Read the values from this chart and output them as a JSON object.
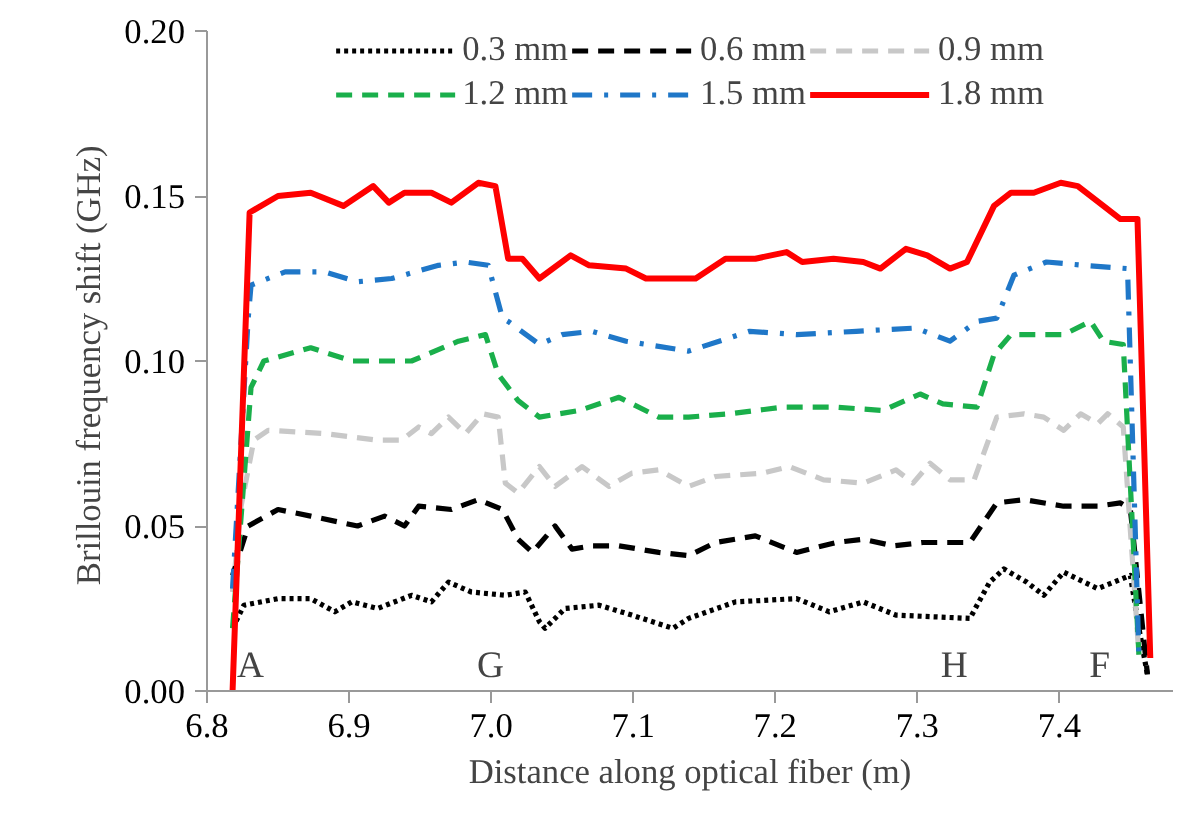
{
  "chart_data": {
    "type": "line",
    "xlabel": "Distance along optical fiber (m)",
    "ylabel": "Brillouin  frequency shift (GHz)",
    "xlim": [
      6.8,
      7.48
    ],
    "xticks": [
      6.8,
      6.9,
      {
        "value": 7.0,
        "label": "7.0"
      },
      7.1,
      7.2,
      7.3,
      7.4
    ],
    "ylim": [
      0,
      0.2
    ],
    "yticks": [
      {
        "value": 0,
        "label": "0.00"
      },
      {
        "value": 0.05,
        "label": "0.05"
      },
      {
        "value": 0.1,
        "label": "0.10"
      },
      {
        "value": 0.15,
        "label": "0.15"
      },
      {
        "value": 0.2,
        "label": "0.20"
      }
    ],
    "legend": "top",
    "grid": false,
    "annotations": [
      "A",
      "G",
      "H",
      "F"
    ],
    "series": [
      {
        "name": "0.3 mm",
        "color": "#000000",
        "line_style": "dotted",
        "x": [
          6.818,
          6.826,
          6.85,
          6.873,
          6.89,
          6.902,
          6.92,
          6.944,
          6.958,
          6.97,
          6.986,
          7.01,
          7.024,
          7.034,
          7.038,
          7.052,
          7.076,
          7.099,
          7.128,
          7.139,
          7.172,
          7.215,
          7.238,
          7.262,
          7.285,
          7.337,
          7.351,
          7.361,
          7.377,
          7.389,
          7.403,
          7.427,
          7.45,
          7.456,
          7.462
        ],
        "values": [
          0.019,
          0.026,
          0.028,
          0.028,
          0.024,
          0.027,
          0.025,
          0.029,
          0.027,
          0.033,
          0.03,
          0.029,
          0.03,
          0.021,
          0.019,
          0.025,
          0.026,
          0.023,
          0.019,
          0.022,
          0.027,
          0.028,
          0.024,
          0.027,
          0.023,
          0.022,
          0.033,
          0.037,
          0.033,
          0.029,
          0.036,
          0.031,
          0.035,
          0.019,
          0.005
        ]
      },
      {
        "name": "0.6 mm",
        "color": "#000000",
        "line_style": "dashed",
        "x": [
          6.818,
          6.829,
          6.85,
          6.873,
          6.906,
          6.925,
          6.939,
          6.949,
          6.972,
          6.991,
          7.008,
          7.019,
          7.029,
          7.045,
          7.057,
          7.071,
          7.09,
          7.118,
          7.139,
          7.158,
          7.186,
          7.215,
          7.243,
          7.262,
          7.283,
          7.304,
          7.337,
          7.356,
          7.375,
          7.403,
          7.427,
          7.443,
          7.45,
          7.462
        ],
        "values": [
          0.035,
          0.05,
          0.055,
          0.053,
          0.05,
          0.053,
          0.05,
          0.056,
          0.055,
          0.058,
          0.055,
          0.046,
          0.042,
          0.05,
          0.043,
          0.044,
          0.044,
          0.042,
          0.041,
          0.045,
          0.047,
          0.042,
          0.045,
          0.046,
          0.044,
          0.045,
          0.045,
          0.057,
          0.058,
          0.056,
          0.056,
          0.057,
          0.055,
          0.005
        ]
      },
      {
        "name": "0.9 mm",
        "color": "#c8c8c8",
        "line_style": "dashed",
        "x": [
          6.818,
          6.824,
          6.833,
          6.843,
          6.883,
          6.92,
          6.937,
          6.949,
          6.958,
          6.97,
          6.982,
          6.994,
          7.005,
          7.01,
          7.019,
          7.034,
          7.045,
          7.064,
          7.083,
          7.099,
          7.118,
          7.139,
          7.158,
          7.191,
          7.21,
          7.234,
          7.262,
          7.285,
          7.297,
          7.309,
          7.323,
          7.34,
          7.356,
          7.375,
          7.389,
          7.403,
          7.415,
          7.427,
          7.434,
          7.445,
          7.456
        ],
        "values": [
          0.03,
          0.056,
          0.076,
          0.079,
          0.078,
          0.076,
          0.076,
          0.08,
          0.078,
          0.083,
          0.078,
          0.084,
          0.083,
          0.063,
          0.06,
          0.068,
          0.062,
          0.068,
          0.062,
          0.066,
          0.067,
          0.062,
          0.065,
          0.066,
          0.068,
          0.064,
          0.063,
          0.067,
          0.063,
          0.069,
          0.064,
          0.064,
          0.083,
          0.084,
          0.083,
          0.079,
          0.084,
          0.081,
          0.084,
          0.08,
          0.011
        ]
      },
      {
        "name": "1.2 mm",
        "color": "#1aaf4b",
        "line_style": "dashed",
        "x": [
          6.818,
          6.831,
          6.84,
          6.873,
          6.902,
          6.944,
          6.977,
          6.996,
          7.005,
          7.019,
          7.034,
          7.062,
          7.09,
          7.118,
          7.139,
          7.168,
          7.205,
          7.243,
          7.276,
          7.302,
          7.318,
          7.342,
          7.354,
          7.366,
          7.403,
          7.422,
          7.431,
          7.445,
          7.456
        ],
        "values": [
          0.019,
          0.092,
          0.1,
          0.104,
          0.1,
          0.1,
          0.106,
          0.108,
          0.096,
          0.088,
          0.083,
          0.085,
          0.089,
          0.083,
          0.083,
          0.084,
          0.086,
          0.086,
          0.085,
          0.09,
          0.087,
          0.086,
          0.102,
          0.108,
          0.108,
          0.112,
          0.106,
          0.105,
          0.011
        ]
      },
      {
        "name": "1.5 mm",
        "color": "#1f77c8",
        "line_style": "dashdot",
        "x": [
          6.818,
          6.829,
          6.831,
          6.855,
          6.883,
          6.906,
          6.93,
          6.963,
          6.982,
          6.998,
          7.008,
          7.012,
          7.034,
          7.05,
          7.071,
          7.095,
          7.139,
          7.182,
          7.215,
          7.257,
          7.299,
          7.323,
          7.342,
          7.356,
          7.368,
          7.391,
          7.417,
          7.448,
          7.456
        ],
        "values": [
          0.031,
          0.113,
          0.123,
          0.127,
          0.127,
          0.124,
          0.125,
          0.129,
          0.13,
          0.129,
          0.113,
          0.112,
          0.105,
          0.108,
          0.109,
          0.106,
          0.103,
          0.109,
          0.108,
          0.109,
          0.11,
          0.106,
          0.112,
          0.113,
          0.126,
          0.13,
          0.129,
          0.128,
          0.011
        ]
      },
      {
        "name": "1.8 mm",
        "color": "#ff0000",
        "line_style": "solid",
        "x": [
          6.818,
          6.83,
          6.85,
          6.873,
          6.896,
          6.917,
          6.928,
          6.939,
          6.958,
          6.972,
          6.991,
          7.003,
          7.012,
          7.022,
          7.034,
          7.056,
          7.069,
          7.095,
          7.109,
          7.144,
          7.165,
          7.186,
          7.208,
          7.219,
          7.241,
          7.262,
          7.274,
          7.292,
          7.307,
          7.323,
          7.335,
          7.354,
          7.366,
          7.382,
          7.401,
          7.413,
          7.431,
          7.443,
          7.455,
          7.464
        ],
        "values": [
          0.0,
          0.145,
          0.15,
          0.151,
          0.147,
          0.153,
          0.148,
          0.151,
          0.151,
          0.148,
          0.154,
          0.153,
          0.131,
          0.131,
          0.125,
          0.132,
          0.129,
          0.128,
          0.125,
          0.125,
          0.131,
          0.131,
          0.133,
          0.13,
          0.131,
          0.13,
          0.128,
          0.134,
          0.132,
          0.128,
          0.13,
          0.147,
          0.151,
          0.151,
          0.154,
          0.153,
          0.147,
          0.143,
          0.143,
          0.01
        ]
      }
    ]
  }
}
